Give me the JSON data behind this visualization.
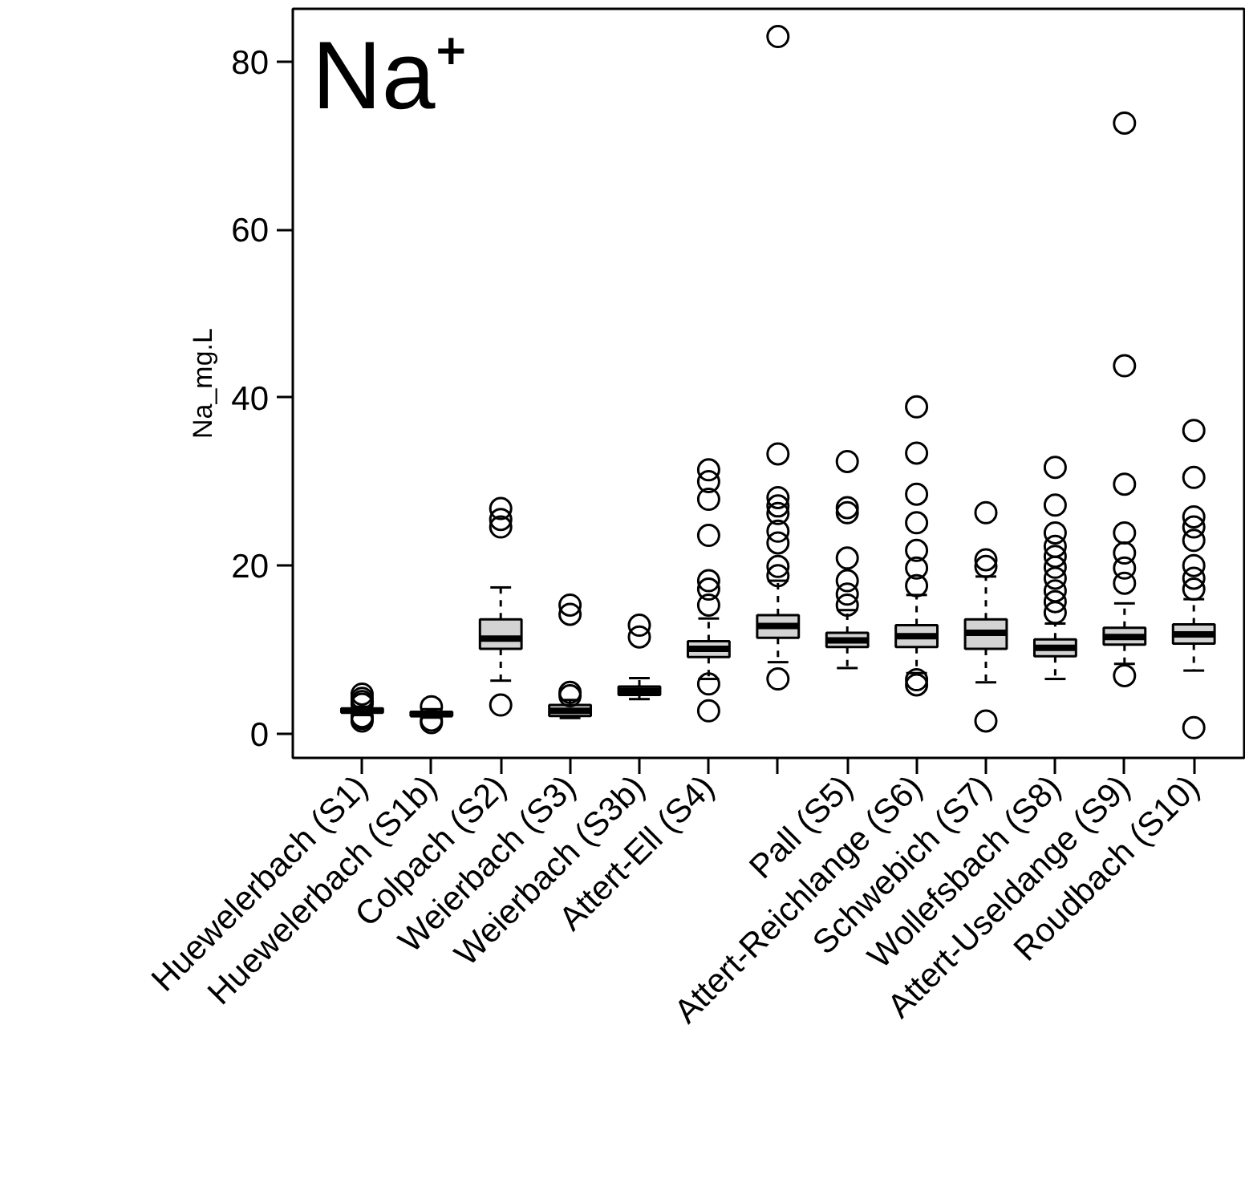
{
  "chart_data": {
    "type": "box",
    "title": "Na⁺",
    "ylabel": "Na_mg.L",
    "categories": [
      "Huewelerbach (S1)",
      "Huewelerbach (S1b)",
      "Colpach (S2)",
      "Weierbach (S3)",
      "Weierbach (S3b)",
      "Attert-Ell (S4)",
      null,
      "Pall (S5)",
      "Attert-Reichlange (S6)",
      "Schwebich (S7)",
      "Wollefsbach (S8)",
      "Attert-Useldange (S9)",
      "Roudbach (S10)"
    ],
    "color": "#d3d3d3",
    "boxes": [
      {
        "low": 2.2,
        "q1": 2.5,
        "median": 2.7,
        "q3": 3.0,
        "high": 3.2,
        "outliers": [
          1.5,
          1.8,
          2.0,
          3.5,
          3.8,
          4.2,
          4.7
        ]
      },
      {
        "low": 1.9,
        "q1": 2.1,
        "median": 2.3,
        "q3": 2.6,
        "high": 2.9,
        "outliers": [
          1.3,
          1.6,
          3.2
        ]
      },
      {
        "low": 6.3,
        "q1": 10.1,
        "median": 11.3,
        "q3": 13.6,
        "high": 17.4,
        "outliers": [
          3.4,
          24.6,
          25.5,
          26.8
        ]
      },
      {
        "low": 1.85,
        "q1": 2.1,
        "median": 2.7,
        "q3": 3.4,
        "high": 4.0,
        "outliers": [
          4.5,
          4.9,
          14.2,
          15.3
        ]
      },
      {
        "low": 4.1,
        "q1": 4.6,
        "median": 5.1,
        "q3": 5.6,
        "high": 6.6,
        "outliers": [
          11.5,
          12.9
        ]
      },
      {
        "low": 6.5,
        "q1": 9.1,
        "median": 10.1,
        "q3": 11.0,
        "high": 13.7,
        "outliers": [
          2.7,
          5.9,
          15.3,
          17.2,
          18.2,
          23.6,
          27.9,
          30.0,
          31.4
        ]
      },
      {
        "low": 8.5,
        "q1": 11.4,
        "median": 12.8,
        "q3": 14.1,
        "high": 18.2,
        "outliers": [
          6.5,
          18.8,
          19.9,
          22.7,
          24.1,
          26.2,
          27.1,
          28.1,
          33.3,
          83.0
        ]
      },
      {
        "low": 7.8,
        "q1": 10.3,
        "median": 11.1,
        "q3": 12.0,
        "high": 14.7,
        "outliers": [
          15.3,
          16.6,
          18.2,
          20.9,
          26.3,
          26.9,
          32.4
        ]
      },
      {
        "low": 7.2,
        "q1": 10.3,
        "median": 11.6,
        "q3": 12.9,
        "high": 16.5,
        "outliers": [
          5.8,
          6.4,
          17.6,
          19.7,
          21.8,
          25.1,
          28.5,
          33.4,
          38.9
        ]
      },
      {
        "low": 6.1,
        "q1": 10.1,
        "median": 12.0,
        "q3": 13.6,
        "high": 18.7,
        "outliers": [
          1.5,
          19.9,
          20.7,
          26.3
        ]
      },
      {
        "low": 6.5,
        "q1": 9.2,
        "median": 10.2,
        "q3": 11.2,
        "high": 13.1,
        "outliers": [
          14.4,
          15.7,
          17.0,
          18.5,
          19.8,
          21.1,
          22.3,
          23.9,
          27.2,
          31.7
        ]
      },
      {
        "low": 8.3,
        "q1": 10.6,
        "median": 11.5,
        "q3": 12.6,
        "high": 15.5,
        "outliers": [
          6.9,
          17.9,
          19.7,
          21.5,
          23.9,
          29.7,
          43.8,
          72.7
        ]
      },
      {
        "low": 7.5,
        "q1": 10.7,
        "median": 11.8,
        "q3": 13.0,
        "high": 16.0,
        "outliers": [
          0.7,
          17.2,
          18.5,
          20.0,
          23.0,
          24.6,
          25.8,
          30.5,
          36.1
        ]
      }
    ],
    "ylim": [
      -2.9,
      86.3
    ],
    "yticks": [
      0,
      20,
      40,
      60,
      80
    ]
  }
}
